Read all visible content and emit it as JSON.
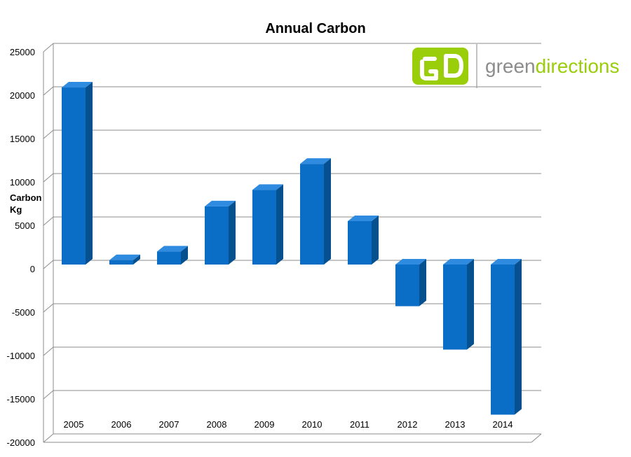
{
  "chart_data": {
    "type": "bar",
    "title": "Annual Carbon",
    "ylabel": [
      "Carbon",
      "Kg"
    ],
    "xlabel": "",
    "categories": [
      "2005",
      "2006",
      "2007",
      "2008",
      "2009",
      "2010",
      "2011",
      "2012",
      "2013",
      "2014"
    ],
    "values": [
      20400,
      500,
      1500,
      6700,
      8600,
      11600,
      5000,
      -4800,
      -9800,
      -17300
    ],
    "ylim": [
      -20000,
      25000
    ],
    "yticks": [
      25000,
      20000,
      15000,
      10000,
      5000,
      0,
      -5000,
      -10000,
      -15000,
      -20000
    ],
    "grid": true,
    "style": "3d-column"
  },
  "branding": {
    "logo_mark": "GD",
    "word_part1": "green",
    "word_part2": "directions",
    "colors": {
      "accent": "#9ACD0A",
      "text": "#8C8C8C"
    }
  },
  "colors": {
    "bar_front": "#0A6DC6",
    "bar_top": "#2E8BE0",
    "bar_side": "#07508F",
    "grid": "#8C8C8C"
  }
}
